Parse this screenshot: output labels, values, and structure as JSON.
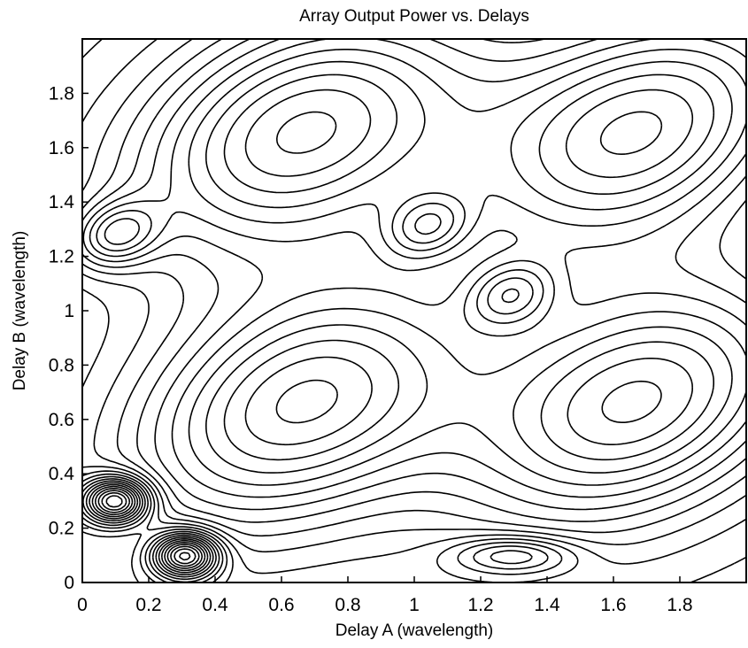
{
  "chart_data": {
    "type": "contour",
    "title": "Array Output Power vs. Delays",
    "xlabel": "Delay A (wavelength)",
    "ylabel": "Delay B (wavelength)",
    "xlim": [
      0,
      2.0
    ],
    "ylim": [
      0,
      2.0
    ],
    "x_ticks": [
      0,
      0.2,
      0.4,
      0.6,
      0.8,
      1,
      1.2,
      1.4,
      1.6,
      1.8
    ],
    "x_tick_labels": [
      "0",
      "0.2",
      "0.4",
      "0.6",
      "0.8",
      "1",
      "1.2",
      "1.4",
      "1.6",
      "1.8"
    ],
    "y_ticks": [
      0,
      0.2,
      0.4,
      0.6,
      0.8,
      1,
      1.2,
      1.4,
      1.6,
      1.8
    ],
    "y_tick_labels": [
      "0",
      "0.2",
      "0.4",
      "0.6",
      "0.8",
      "1",
      "1.2",
      "1.4",
      "1.6",
      "1.8"
    ],
    "grid": false,
    "line_color": "#000000",
    "maxima": [
      {
        "x": 0.66,
        "y": 1.66
      },
      {
        "x": 1.67,
        "y": 1.66
      },
      {
        "x": 0.66,
        "y": 0.66
      },
      {
        "x": 1.67,
        "y": 0.66
      },
      {
        "x": 1.04,
        "y": 1.31
      },
      {
        "x": 1.29,
        "y": 1.06
      },
      {
        "x": 0.1,
        "y": 1.28
      }
    ],
    "dense_minima": [
      {
        "x": 0.1,
        "y": 0.3
      },
      {
        "x": 0.31,
        "y": 0.1
      },
      {
        "x": 1.3,
        "y": 0.1
      }
    ]
  }
}
